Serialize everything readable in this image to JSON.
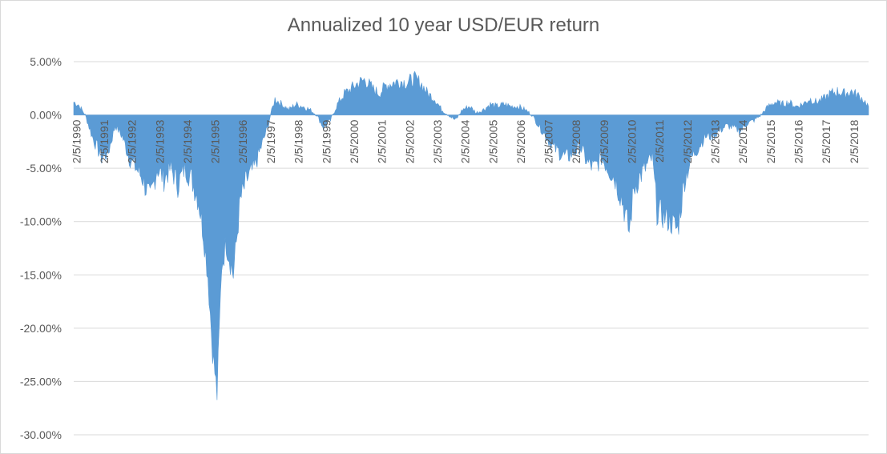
{
  "chart_data": {
    "type": "area",
    "title": "Annualized 10 year USD/EUR return",
    "xlabel": "",
    "ylabel": "",
    "ylim": [
      -0.3,
      0.05
    ],
    "grid": true,
    "legend": "none",
    "series_color": "#5b9bd5",
    "grid_color": "#d9d9d9",
    "y_ticks": [
      0.05,
      0.0,
      -0.05,
      -0.1,
      -0.15,
      -0.2,
      -0.25,
      -0.3
    ],
    "y_tick_labels": [
      "5.00%",
      "0.00%",
      "-5.00%",
      "-10.00%",
      "-15.00%",
      "-20.00%",
      "-25.00%",
      "-30.00%"
    ],
    "x_range": [
      "1990-01-01",
      "2018-08-15"
    ],
    "x_tick_labels": [
      "2/5/1990",
      "2/5/1991",
      "2/5/1992",
      "2/5/1993",
      "2/5/1994",
      "2/5/1995",
      "2/5/1996",
      "2/5/1997",
      "2/5/1998",
      "2/5/1999",
      "2/5/2000",
      "2/5/2001",
      "2/5/2002",
      "2/5/2003",
      "2/5/2004",
      "2/5/2005",
      "2/5/2006",
      "2/5/2007",
      "2/5/2008",
      "2/5/2009",
      "2/5/2010",
      "2/5/2011",
      "2/5/2012",
      "2/5/2013",
      "2/5/2014",
      "2/5/2015",
      "2/5/2016",
      "2/5/2017",
      "2/5/2018"
    ],
    "x_tick_dates": [
      "1990-02-05",
      "1991-02-05",
      "1992-02-05",
      "1993-02-05",
      "1994-02-05",
      "1995-02-05",
      "1996-02-05",
      "1997-02-05",
      "1998-02-05",
      "1999-02-05",
      "2000-02-05",
      "2001-02-05",
      "2002-02-05",
      "2003-02-05",
      "2004-02-05",
      "2005-02-05",
      "2006-02-05",
      "2007-02-05",
      "2008-02-05",
      "2009-02-05",
      "2010-02-05",
      "2011-02-05",
      "2012-02-05",
      "2013-02-05",
      "2014-02-05",
      "2015-02-05",
      "2016-02-05",
      "2017-02-05",
      "2018-02-05"
    ],
    "series": [
      {
        "x": [
          "1990-01-01",
          "1990-03-01",
          "1990-06-01",
          "1990-09-01",
          "1991-01-01",
          "1991-04-01",
          "1991-07-01",
          "1991-10-01",
          "1992-01-01",
          "1992-04-01",
          "1992-07-01",
          "1992-10-01",
          "1993-01-01",
          "1993-04-01",
          "1993-07-01",
          "1993-10-01",
          "1994-01-01",
          "1994-04-01",
          "1994-07-01",
          "1994-09-01",
          "1994-11-01",
          "1995-01-01",
          "1995-03-01",
          "1995-05-01",
          "1995-07-01",
          "1995-10-01",
          "1996-01-01",
          "1996-04-01",
          "1996-07-01",
          "1996-10-01",
          "1997-01-01",
          "1997-02-01",
          "1997-04-01",
          "1997-07-01",
          "1997-10-01",
          "1998-01-01",
          "1998-04-01",
          "1998-07-01",
          "1998-10-01",
          "1999-01-01",
          "1999-04-01",
          "1999-07-01",
          "1999-10-01",
          "2000-01-01",
          "2000-04-01",
          "2000-07-01",
          "2000-10-01",
          "2001-01-01",
          "2001-04-01",
          "2001-07-01",
          "2001-10-01",
          "2002-01-01",
          "2002-04-01",
          "2002-07-01",
          "2002-10-01",
          "2003-01-01",
          "2003-04-01",
          "2003-07-01",
          "2003-10-01",
          "2004-01-01",
          "2004-04-01",
          "2004-07-01",
          "2004-10-01",
          "2005-01-01",
          "2005-04-01",
          "2005-07-01",
          "2005-10-01",
          "2006-01-01",
          "2006-04-01",
          "2006-07-01",
          "2006-10-01",
          "2007-01-01",
          "2007-04-01",
          "2007-07-01",
          "2007-10-01",
          "2008-01-01",
          "2008-04-01",
          "2008-07-01",
          "2008-10-01",
          "2009-01-01",
          "2009-04-01",
          "2009-07-01",
          "2009-10-01",
          "2010-01-01",
          "2010-03-01",
          "2010-05-01",
          "2010-08-01",
          "2010-11-01",
          "2011-01-01",
          "2011-04-01",
          "2011-07-01",
          "2011-10-01",
          "2012-01-01",
          "2012-04-01",
          "2012-07-01",
          "2012-10-01",
          "2013-01-01",
          "2013-04-01",
          "2013-07-01",
          "2013-10-01",
          "2014-01-01",
          "2014-04-01",
          "2014-07-01",
          "2014-10-01",
          "2015-01-01",
          "2015-04-01",
          "2015-07-01",
          "2015-10-01",
          "2016-01-01",
          "2016-04-01",
          "2016-07-01",
          "2016-10-01",
          "2017-01-01",
          "2017-04-01",
          "2017-07-01",
          "2017-10-01",
          "2018-01-01",
          "2018-04-01",
          "2018-06-01",
          "2018-08-15"
        ],
        "y": [
          0.012,
          0.01,
          0.0,
          -0.02,
          -0.04,
          -0.035,
          -0.01,
          -0.02,
          -0.04,
          -0.05,
          -0.06,
          -0.08,
          -0.05,
          -0.06,
          -0.05,
          -0.065,
          -0.05,
          -0.06,
          -0.08,
          -0.11,
          -0.15,
          -0.22,
          -0.263,
          -0.14,
          -0.12,
          -0.15,
          -0.08,
          -0.06,
          -0.05,
          -0.03,
          -0.01,
          0.0,
          0.015,
          0.01,
          0.005,
          0.01,
          0.008,
          0.005,
          0.0,
          -0.012,
          -0.005,
          0.01,
          0.02,
          0.025,
          0.03,
          0.033,
          0.025,
          0.02,
          0.028,
          0.03,
          0.032,
          0.03,
          0.034,
          0.03,
          0.02,
          0.015,
          0.005,
          0.0,
          -0.005,
          0.005,
          0.008,
          0.002,
          0.005,
          0.01,
          0.008,
          0.01,
          0.008,
          0.008,
          0.005,
          0.0,
          -0.01,
          -0.02,
          -0.03,
          -0.035,
          -0.04,
          -0.035,
          -0.03,
          -0.045,
          -0.05,
          -0.04,
          -0.05,
          -0.06,
          -0.08,
          -0.11,
          -0.07,
          -0.06,
          -0.05,
          -0.04,
          -0.09,
          -0.095,
          -0.1,
          -0.108,
          -0.06,
          -0.04,
          -0.03,
          -0.02,
          -0.02,
          -0.015,
          -0.01,
          -0.012,
          -0.015,
          -0.008,
          -0.005,
          0.0,
          0.008,
          0.012,
          0.01,
          0.012,
          0.008,
          0.01,
          0.015,
          0.012,
          0.015,
          0.02,
          0.022,
          0.02,
          0.022,
          0.018,
          0.015,
          0.008
        ]
      }
    ]
  }
}
